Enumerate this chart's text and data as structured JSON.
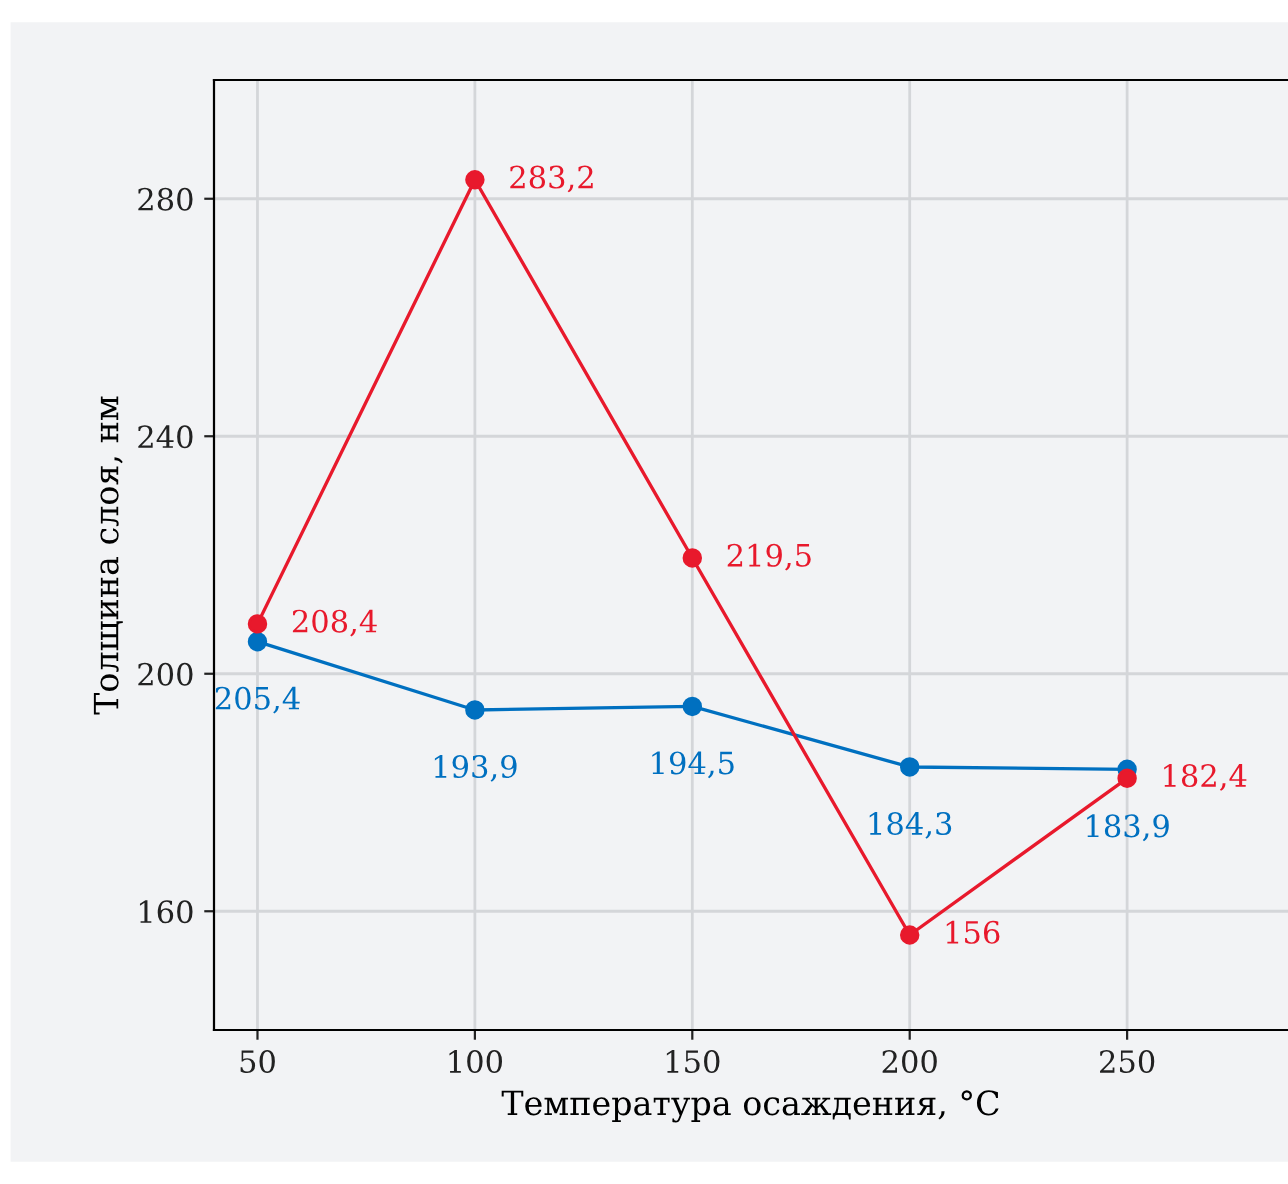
{
  "chart_data": {
    "type": "line",
    "xlabel": "Температура осаждения, °C",
    "ylabel": "Толщина слоя, нм",
    "x": [
      50,
      100,
      150,
      200,
      250
    ],
    "series": [
      {
        "color": "#0070c0",
        "values": [
          205.4,
          193.9,
          194.5,
          184.3,
          183.9
        ],
        "value_labels": [
          "205,4",
          "193,9",
          "194,5",
          "184,3",
          "183,9"
        ]
      },
      {
        "color": "#e8192c",
        "values": [
          208.4,
          283.2,
          219.5,
          156,
          182.4
        ],
        "value_labels": [
          "208,4",
          "283,2",
          "219,5",
          "156",
          "182,4"
        ]
      }
    ],
    "xlim": [
      40,
      287
    ],
    "xticks": [
      50,
      100,
      150,
      200,
      250
    ],
    "ylim": [
      140,
      300
    ],
    "yticks": [
      160,
      200,
      240,
      280
    ],
    "grid": true,
    "marker": "circle",
    "line_style": "solid",
    "legend": false
  }
}
